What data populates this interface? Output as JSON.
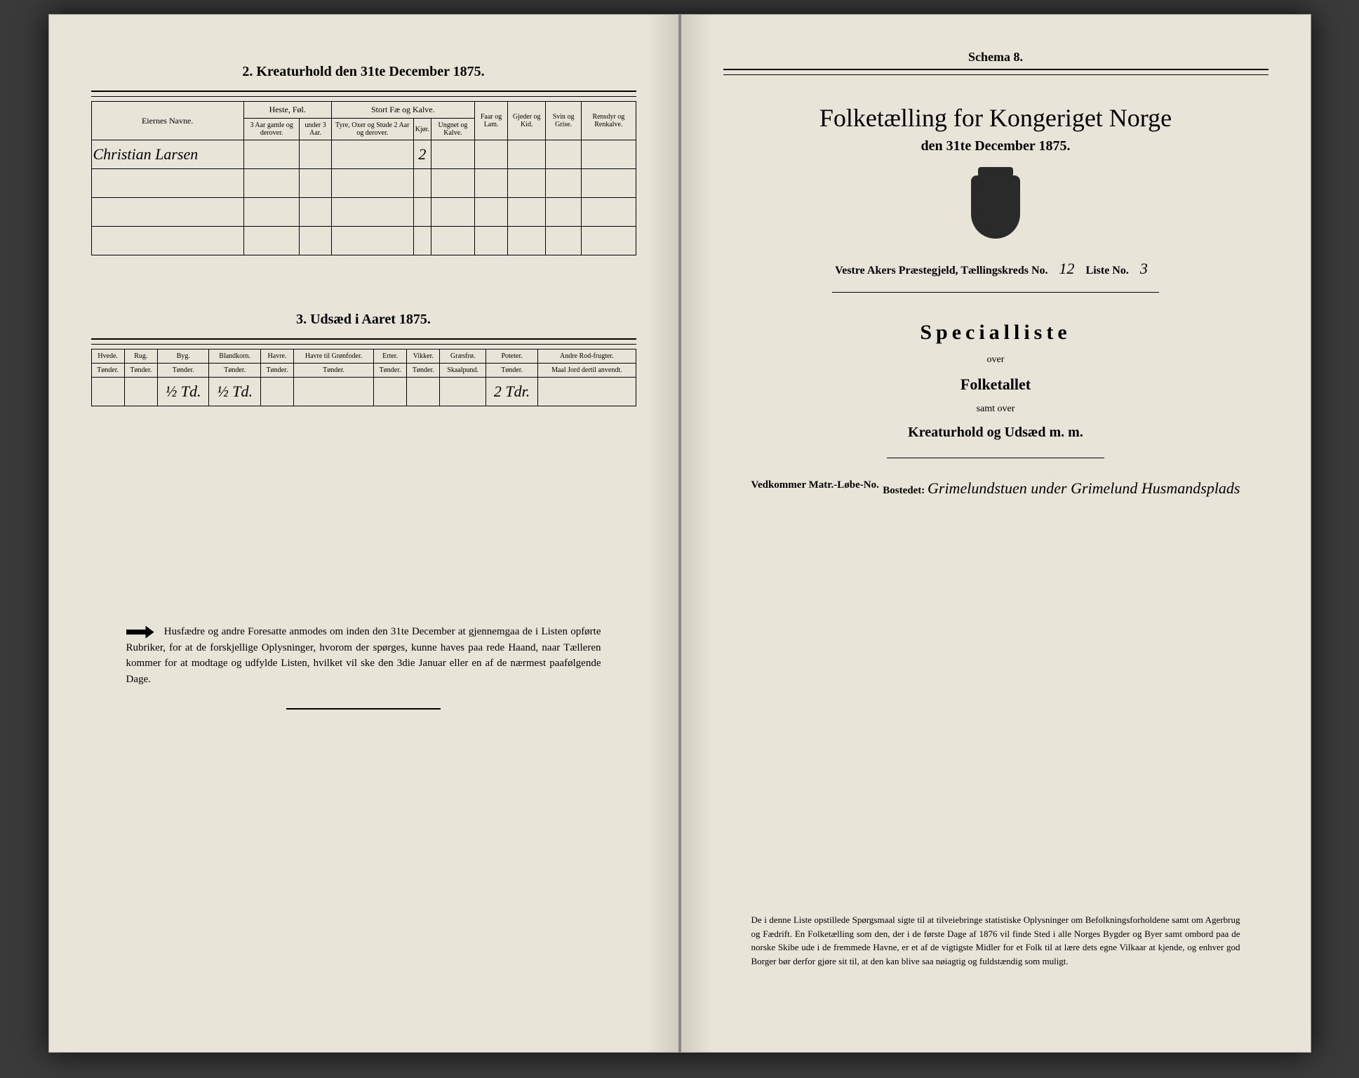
{
  "left_page": {
    "section2": {
      "title": "2. Kreaturhold den 31te December 1875.",
      "col_names_label": "Eiernes Navne.",
      "group_heste": "Heste, Føl.",
      "group_storfe": "Stort Fæ og Kalve.",
      "col_heste1": "3 Aar gamle og derover.",
      "col_heste2": "under 3 Aar.",
      "col_storfe1": "Tyre, Oxer og Stude 2 Aar og derover.",
      "col_storfe2": "Kjør.",
      "col_storfe3": "Ungnet og Kalve.",
      "col_faar": "Faar og Lam.",
      "col_gjeder": "Gjeder og Kid.",
      "col_svin": "Svin og Grise.",
      "col_rensdyr": "Rensdyr og Renkalve.",
      "rows": [
        {
          "name": "Christian Larsen",
          "heste1": "",
          "heste2": "",
          "storfe1": "",
          "storfe2": "2",
          "storfe3": "",
          "faar": "",
          "gjeder": "",
          "svin": "",
          "rensdyr": ""
        },
        {
          "name": "",
          "heste1": "",
          "heste2": "",
          "storfe1": "",
          "storfe2": "",
          "storfe3": "",
          "faar": "",
          "gjeder": "",
          "svin": "",
          "rensdyr": ""
        },
        {
          "name": "",
          "heste1": "",
          "heste2": "",
          "storfe1": "",
          "storfe2": "",
          "storfe3": "",
          "faar": "",
          "gjeder": "",
          "svin": "",
          "rensdyr": ""
        },
        {
          "name": "",
          "heste1": "",
          "heste2": "",
          "storfe1": "",
          "storfe2": "",
          "storfe3": "",
          "faar": "",
          "gjeder": "",
          "svin": "",
          "rensdyr": ""
        }
      ]
    },
    "section3": {
      "title": "3. Udsæd i Aaret 1875.",
      "cols": [
        {
          "h": "Hvede.",
          "u": "Tønder."
        },
        {
          "h": "Rug.",
          "u": "Tønder."
        },
        {
          "h": "Byg.",
          "u": "Tønder."
        },
        {
          "h": "Blandkorn.",
          "u": "Tønder."
        },
        {
          "h": "Havre.",
          "u": "Tønder."
        },
        {
          "h": "Havre til Grønfoder.",
          "u": "Tønder."
        },
        {
          "h": "Erter.",
          "u": "Tønder."
        },
        {
          "h": "Vikker.",
          "u": "Tønder."
        },
        {
          "h": "Græsfrø.",
          "u": "Skaalpund."
        },
        {
          "h": "Poteter.",
          "u": "Tønder."
        },
        {
          "h": "Andre Rod-frugter.",
          "u": "Maal Jord dertil anvendt."
        }
      ],
      "row": [
        "",
        "",
        "½ Td.",
        "½ Td.",
        "",
        "",
        "",
        "",
        "",
        "2 Tdr.",
        ""
      ]
    },
    "notice": "Husfædre og andre Foresatte anmodes om inden den 31te December at gjennemgaa de i Listen opførte Rubriker, for at de forskjellige Oplysninger, hvorom der spørges, kunne haves paa rede Haand, naar Tælleren kommer for at modtage og udfylde Listen, hvilket vil ske den 3die Januar eller en af de nærmest paafølgende Dage."
  },
  "right_page": {
    "schema": "Schema 8.",
    "main_title": "Folketælling for Kongeriget Norge",
    "date_line": "den 31te December 1875.",
    "prestegjeld_label": "Vestre Akers Præstegjeld, Tællingskreds No.",
    "kreds_no": "12",
    "liste_label": "Liste No.",
    "liste_no": "3",
    "specialliste": "Specialliste",
    "over": "over",
    "folketallet": "Folketallet",
    "samt_over": "samt over",
    "kreaturhold": "Kreaturhold og Udsæd m. m.",
    "vedkommer": "Vedkommer Matr.-Løbe-No.",
    "bostedet_label": "Bostedet:",
    "bostedet_value": "Grimelundstuen under Grimelund Husmandsplads",
    "bottom": "De i denne Liste opstillede Spørgsmaal sigte til at tilveiebringe statistiske Oplysninger om Befolkningsforholdene samt om Agerbrug og Fædrift. En Folketælling som den, der i de første Dage af 1876 vil finde Sted i alle Norges Bygder og Byer samt ombord paa de norske Skibe ude i de fremmede Havne, er et af de vigtigste Midler for et Folk til at lære dets egne Vilkaar at kjende, og enhver god Borger bør derfor gjøre sit til, at den kan blive saa nøiagtig og fuldstændig som muligt."
  }
}
